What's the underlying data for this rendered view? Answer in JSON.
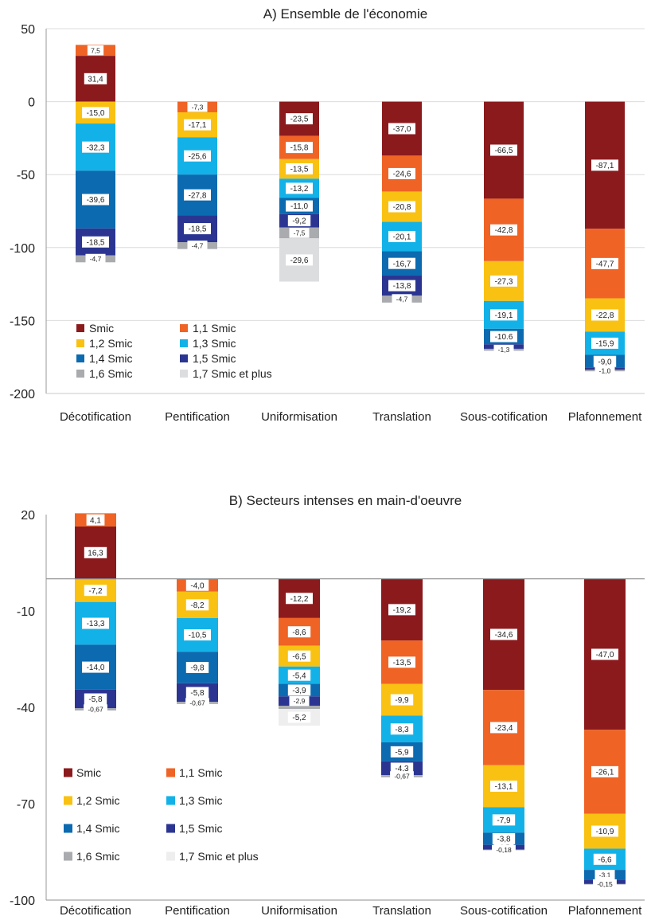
{
  "chart_data": [
    {
      "type": "bar",
      "stacked": true,
      "title": "A) Ensemble de l'économie",
      "categories": [
        "Décotification",
        "Pentification",
        "Uniformisation",
        "Translation",
        "Sous-cotification",
        "Plafonnement"
      ],
      "ylim": [
        -200,
        50
      ],
      "yticks": [
        "50",
        "0",
        "-50",
        "-100",
        "-150",
        "-200"
      ],
      "ytick_values": [
        50,
        0,
        -50,
        -100,
        -150,
        -200
      ],
      "grid": true,
      "legend_position": "bottom-left",
      "series": [
        {
          "name": "Smic",
          "color": "#8b1a1d",
          "values": [
            31.4,
            0,
            -23.5,
            -37.0,
            -66.5,
            -87.1
          ],
          "labels": [
            "31,4",
            "",
            "-23,5",
            "-37,0",
            "-66,5",
            "-87,1"
          ]
        },
        {
          "name": "1,1 Smic",
          "color": "#ef6325",
          "values": [
            7.5,
            -7.3,
            -15.8,
            -24.6,
            -42.8,
            -47.7
          ],
          "labels": [
            "7,5",
            "-7,3",
            "-15,8",
            "-24,6",
            "-42,8",
            "-47,7"
          ]
        },
        {
          "name": "1,2 Smic",
          "color": "#f9c112",
          "values": [
            -15.0,
            -17.1,
            -13.5,
            -20.8,
            -27.3,
            -22.8
          ],
          "labels": [
            "-15,0",
            "-17,1",
            "-13,5",
            "-20,8",
            "-27,3",
            "-22,8"
          ]
        },
        {
          "name": "1,3 Smic",
          "color": "#12b2e8",
          "values": [
            -32.3,
            -25.6,
            -13.2,
            -20.1,
            -19.1,
            -15.9
          ],
          "labels": [
            "-32,3",
            "-25,6",
            "-13,2",
            "-20,1",
            "-19,1",
            "-15,9"
          ]
        },
        {
          "name": "1,4 Smic",
          "color": "#0b6ab0",
          "values": [
            -39.6,
            -27.8,
            -11.0,
            -16.7,
            -10.6,
            -9.0
          ],
          "labels": [
            "-39,6",
            "-27,8",
            "-11,0",
            "-16,7",
            "-10.6",
            "-9,0"
          ]
        },
        {
          "name": "1,5 Smic",
          "color": "#2b3591",
          "values": [
            -18.5,
            -18.5,
            -9.2,
            -13.8,
            -3.1,
            -1.3
          ],
          "labels": [
            "-18,5",
            "-18,5",
            "-9,2",
            "-13,8",
            "",
            ""
          ]
        },
        {
          "name": "1,6 Smic",
          "color": "#a9abae",
          "values": [
            -4.7,
            -4.7,
            -7.5,
            -4.7,
            -1.3,
            -1.0
          ],
          "labels": [
            "-4,7",
            "-4,7",
            "-7,5",
            "-4,7",
            "-1,3",
            "-1,0"
          ]
        },
        {
          "name": "1,7 Smic et plus",
          "color": "#dcdddf",
          "values": [
            0,
            0,
            -29.6,
            0,
            0,
            0
          ],
          "labels": [
            "",
            "",
            "-29,6",
            "",
            "",
            ""
          ]
        }
      ]
    },
    {
      "type": "bar",
      "stacked": true,
      "title": "B) Secteurs intenses en main-d'oeuvre",
      "categories": [
        "Décotification",
        "Pentification",
        "Uniformisation",
        "Translation",
        "Sous-cotification",
        "Plafonnement"
      ],
      "ylim": [
        -100,
        20
      ],
      "yticks": [
        "20",
        "-10",
        "-40",
        "-70",
        "-100"
      ],
      "ytick_values": [
        20,
        -10,
        -40,
        -70,
        -100
      ],
      "grid": false,
      "legend_position": "bottom-left",
      "series": [
        {
          "name": "Smic",
          "color": "#8b1a1d",
          "values": [
            16.3,
            0,
            -12.2,
            -19.2,
            -34.6,
            -47.0
          ],
          "labels": [
            "16,3",
            "",
            "-12,2",
            "-19,2",
            "-34,6",
            "-47,0"
          ]
        },
        {
          "name": "1,1 Smic",
          "color": "#ef6325",
          "values": [
            4.1,
            -4.0,
            -8.6,
            -13.5,
            -23.4,
            -26.1
          ],
          "labels": [
            "4,1",
            "-4,0",
            "-8,6",
            "-13,5",
            "-23,4",
            "-26,1"
          ]
        },
        {
          "name": "1,2 Smic",
          "color": "#f9c112",
          "values": [
            -7.2,
            -8.2,
            -6.5,
            -9.9,
            -13.1,
            -10.9
          ],
          "labels": [
            "-7,2",
            "-8,2",
            "-6,5",
            "-9,9",
            "-13,1",
            "-10,9"
          ]
        },
        {
          "name": "1,3 Smic",
          "color": "#12b2e8",
          "values": [
            -13.3,
            -10.5,
            -5.4,
            -8.3,
            -7.9,
            -6.6
          ],
          "labels": [
            "-13,3",
            "-10,5",
            "-5,4",
            "-8,3",
            "-7,9",
            "-6,6"
          ]
        },
        {
          "name": "1,4 Smic",
          "color": "#0b6ab0",
          "values": [
            -14.0,
            -9.8,
            -3.9,
            -5.9,
            -3.8,
            -3.1
          ],
          "labels": [
            "-14,0",
            "-9,8",
            "-3,9",
            "-5,9",
            "-3,8",
            "-3,1"
          ]
        },
        {
          "name": "1,5 Smic",
          "color": "#2b3591",
          "values": [
            -5.8,
            -5.8,
            -2.9,
            -4.3,
            -1.5,
            -1.3
          ],
          "labels": [
            "-5,8",
            "-5,8",
            "-2,9",
            "-4,3",
            "-1,5",
            "-1,3"
          ]
        },
        {
          "name": "1,6 Smic",
          "color": "#a9abae",
          "values": [
            -0.67,
            -0.67,
            -1.0,
            -0.67,
            -0.18,
            -0.15
          ],
          "labels": [
            "-0,67",
            "-0,67",
            "",
            "-0,67",
            "-0,18",
            "-0,15"
          ]
        },
        {
          "name": "1,7 Smic et plus",
          "color": "#eeeeef",
          "values": [
            0,
            0,
            -5.2,
            0,
            0,
            0
          ],
          "labels": [
            "",
            "",
            "-5,2",
            "",
            "",
            ""
          ]
        }
      ]
    }
  ]
}
